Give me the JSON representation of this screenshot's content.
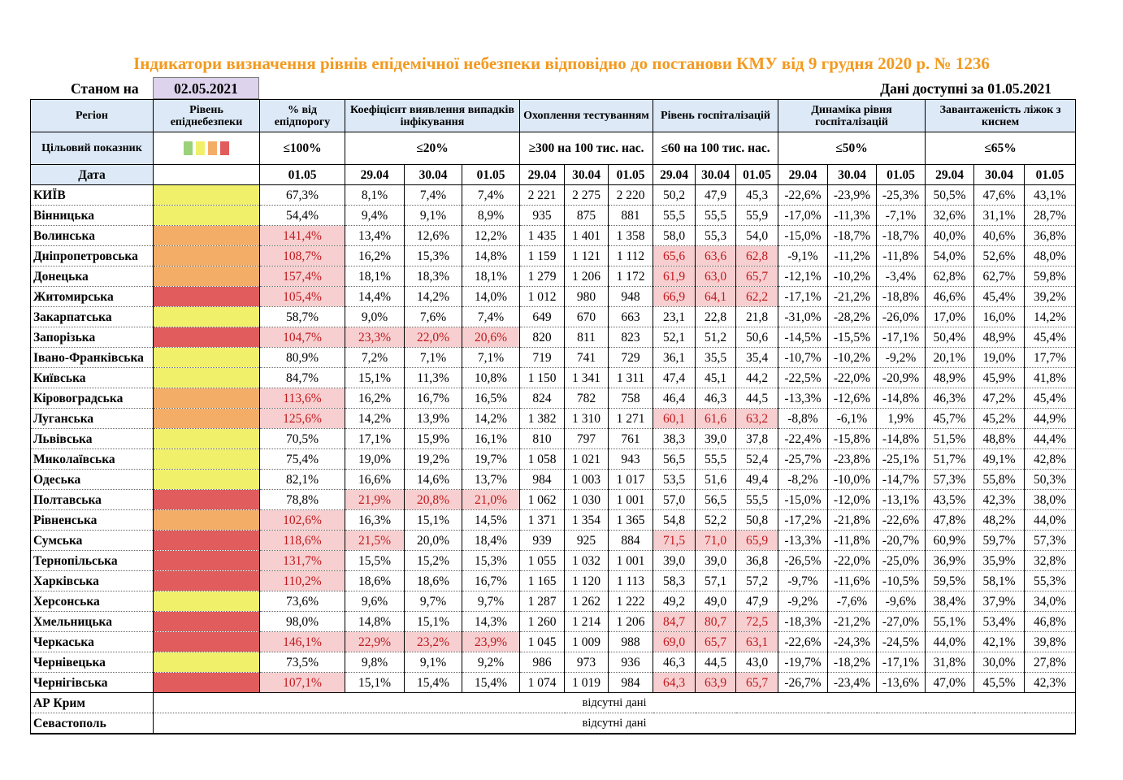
{
  "title": "Індикатори визначення рівнів епідемічної небезпеки відповідно до постанови КМУ від 9 грудня 2020 р. № 1236",
  "as_of_label": "Станом на",
  "as_of_date": "02.05.2021",
  "data_available": "Дані доступні за  01.05.2021",
  "headers": {
    "region": "Регіон",
    "level": "Рівень епіднебезпеки",
    "threshold": "% від епідпорогу",
    "detection": "Коефіцієнт виявлення випадків інфікування",
    "testing": "Охоплення тестуванням",
    "hosp": "Рівень госпіталізацій",
    "dynamics": "Динаміка рівня госпіталізацій",
    "oxygen": "Завантаженість ліжок з киснем"
  },
  "target": {
    "label": "Цільовий показник",
    "swatch_colors": [
      "#9bd17a",
      "#f1f06a",
      "#f4ad67",
      "#e15c5c"
    ],
    "threshold": "≤100%",
    "detection": "≤20%",
    "testing": "≥300 на 100 тис. нас.",
    "hosp": "≤60 на 100 тис. нас.",
    "dynamics": "≤50%",
    "oxygen": "≤65%"
  },
  "date_label": "Дата",
  "dates": {
    "threshold": "01.05",
    "d1": "29.04",
    "d2": "30.04",
    "d3": "01.05"
  },
  "level_colors": {
    "yellow": "#f1f06a",
    "orange": "#f4ad67",
    "red": "#e15c5c"
  },
  "no_data_text": "відсутні дані",
  "no_data_regions": [
    "АР Крим",
    "Севастополь"
  ],
  "rows": [
    {
      "region": "КИЇВ",
      "level": "yellow",
      "threshold": "67,3%",
      "det": [
        "8,1%",
        "7,4%",
        "7,4%"
      ],
      "test": [
        "2 221",
        "2 275",
        "2 220"
      ],
      "hosp": [
        "50,2",
        "47,9",
        "45,3"
      ],
      "dyn": [
        "-22,6%",
        "-23,9%",
        "-25,3%"
      ],
      "oxy": [
        "50,5%",
        "47,6%",
        "43,1%"
      ],
      "hl": []
    },
    {
      "region": "Вінницька",
      "level": "yellow",
      "threshold": "54,4%",
      "det": [
        "9,4%",
        "9,1%",
        "8,9%"
      ],
      "test": [
        "935",
        "875",
        "881"
      ],
      "hosp": [
        "55,5",
        "55,5",
        "55,9"
      ],
      "dyn": [
        "-17,0%",
        "-11,3%",
        "-7,1%"
      ],
      "oxy": [
        "32,6%",
        "31,1%",
        "28,7%"
      ],
      "hl": []
    },
    {
      "region": "Волинська",
      "level": "orange",
      "threshold": "141,4%",
      "det": [
        "13,4%",
        "12,6%",
        "12,2%"
      ],
      "test": [
        "1 435",
        "1 401",
        "1 358"
      ],
      "hosp": [
        "58,0",
        "55,3",
        "54,0"
      ],
      "dyn": [
        "-15,0%",
        "-18,7%",
        "-18,7%"
      ],
      "oxy": [
        "40,0%",
        "40,6%",
        "36,8%"
      ],
      "hl": [
        "threshold"
      ]
    },
    {
      "region": "Дніпропетровська",
      "level": "orange",
      "threshold": "108,7%",
      "det": [
        "16,2%",
        "15,3%",
        "14,8%"
      ],
      "test": [
        "1 159",
        "1 121",
        "1 112"
      ],
      "hosp": [
        "65,6",
        "63,6",
        "62,8"
      ],
      "dyn": [
        "-9,1%",
        "-11,2%",
        "-11,8%"
      ],
      "oxy": [
        "54,0%",
        "52,6%",
        "48,0%"
      ],
      "hl": [
        "threshold",
        "hosp"
      ]
    },
    {
      "region": "Донецька",
      "level": "orange",
      "threshold": "157,4%",
      "det": [
        "18,1%",
        "18,3%",
        "18,1%"
      ],
      "test": [
        "1 279",
        "1 206",
        "1 172"
      ],
      "hosp": [
        "61,9",
        "63,0",
        "65,7"
      ],
      "dyn": [
        "-12,1%",
        "-10,2%",
        "-3,4%"
      ],
      "oxy": [
        "62,8%",
        "62,7%",
        "59,8%"
      ],
      "hl": [
        "threshold",
        "hosp"
      ]
    },
    {
      "region": "Житомирська",
      "level": "red",
      "threshold": "105,4%",
      "det": [
        "14,4%",
        "14,2%",
        "14,0%"
      ],
      "test": [
        "1 012",
        "980",
        "948"
      ],
      "hosp": [
        "66,9",
        "64,1",
        "62,2"
      ],
      "dyn": [
        "-17,1%",
        "-21,2%",
        "-18,8%"
      ],
      "oxy": [
        "46,6%",
        "45,4%",
        "39,2%"
      ],
      "hl": [
        "threshold",
        "hosp"
      ]
    },
    {
      "region": "Закарпатська",
      "level": "yellow",
      "threshold": "58,7%",
      "det": [
        "9,0%",
        "7,6%",
        "7,4%"
      ],
      "test": [
        "649",
        "670",
        "663"
      ],
      "hosp": [
        "23,1",
        "22,8",
        "21,8"
      ],
      "dyn": [
        "-31,0%",
        "-28,2%",
        "-26,0%"
      ],
      "oxy": [
        "17,0%",
        "16,0%",
        "14,2%"
      ],
      "hl": []
    },
    {
      "region": "Запорізька",
      "level": "red",
      "threshold": "104,7%",
      "det": [
        "23,3%",
        "22,0%",
        "20,6%"
      ],
      "test": [
        "820",
        "811",
        "823"
      ],
      "hosp": [
        "52,1",
        "51,2",
        "50,6"
      ],
      "dyn": [
        "-14,5%",
        "-15,5%",
        "-17,1%"
      ],
      "oxy": [
        "50,4%",
        "48,9%",
        "45,4%"
      ],
      "hl": [
        "threshold",
        "det"
      ]
    },
    {
      "region": "Івано-Франківська",
      "level": "yellow",
      "threshold": "80,9%",
      "det": [
        "7,2%",
        "7,1%",
        "7,1%"
      ],
      "test": [
        "719",
        "741",
        "729"
      ],
      "hosp": [
        "36,1",
        "35,5",
        "35,4"
      ],
      "dyn": [
        "-10,7%",
        "-10,2%",
        "-9,2%"
      ],
      "oxy": [
        "20,1%",
        "19,0%",
        "17,7%"
      ],
      "hl": []
    },
    {
      "region": "Київська",
      "level": "yellow",
      "threshold": "84,7%",
      "det": [
        "15,1%",
        "11,3%",
        "10,8%"
      ],
      "test": [
        "1 150",
        "1 341",
        "1 311"
      ],
      "hosp": [
        "47,4",
        "45,1",
        "44,2"
      ],
      "dyn": [
        "-22,5%",
        "-22,0%",
        "-20,9%"
      ],
      "oxy": [
        "48,9%",
        "45,9%",
        "41,8%"
      ],
      "hl": []
    },
    {
      "region": "Кіровоградська",
      "level": "orange",
      "threshold": "113,6%",
      "det": [
        "16,2%",
        "16,7%",
        "16,5%"
      ],
      "test": [
        "824",
        "782",
        "758"
      ],
      "hosp": [
        "46,4",
        "46,3",
        "44,5"
      ],
      "dyn": [
        "-13,3%",
        "-12,6%",
        "-14,8%"
      ],
      "oxy": [
        "46,3%",
        "47,2%",
        "45,4%"
      ],
      "hl": [
        "threshold"
      ]
    },
    {
      "region": "Луганська",
      "level": "orange",
      "threshold": "125,6%",
      "det": [
        "14,2%",
        "13,9%",
        "14,2%"
      ],
      "test": [
        "1 382",
        "1 310",
        "1 271"
      ],
      "hosp": [
        "60,1",
        "61,6",
        "63,2"
      ],
      "dyn": [
        "-8,8%",
        "-6,1%",
        "1,9%"
      ],
      "oxy": [
        "45,7%",
        "45,2%",
        "44,9%"
      ],
      "hl": [
        "threshold",
        "hosp"
      ]
    },
    {
      "region": "Львівська",
      "level": "yellow",
      "threshold": "70,5%",
      "det": [
        "17,1%",
        "15,9%",
        "16,1%"
      ],
      "test": [
        "810",
        "797",
        "761"
      ],
      "hosp": [
        "38,3",
        "39,0",
        "37,8"
      ],
      "dyn": [
        "-22,4%",
        "-15,8%",
        "-14,8%"
      ],
      "oxy": [
        "51,5%",
        "48,8%",
        "44,4%"
      ],
      "hl": []
    },
    {
      "region": "Миколаївська",
      "level": "yellow",
      "threshold": "75,4%",
      "det": [
        "19,0%",
        "19,2%",
        "19,7%"
      ],
      "test": [
        "1 058",
        "1 021",
        "943"
      ],
      "hosp": [
        "56,5",
        "55,5",
        "52,4"
      ],
      "dyn": [
        "-25,7%",
        "-23,8%",
        "-25,1%"
      ],
      "oxy": [
        "51,7%",
        "49,1%",
        "42,8%"
      ],
      "hl": []
    },
    {
      "region": "Одеська",
      "level": "yellow",
      "threshold": "82,1%",
      "det": [
        "16,6%",
        "14,6%",
        "13,7%"
      ],
      "test": [
        "984",
        "1 003",
        "1 017"
      ],
      "hosp": [
        "53,5",
        "51,6",
        "49,4"
      ],
      "dyn": [
        "-8,2%",
        "-10,0%",
        "-14,7%"
      ],
      "oxy": [
        "57,3%",
        "55,8%",
        "50,3%"
      ],
      "hl": []
    },
    {
      "region": "Полтавська",
      "level": "red",
      "threshold": "78,8%",
      "det": [
        "21,9%",
        "20,8%",
        "21,0%"
      ],
      "test": [
        "1 062",
        "1 030",
        "1 001"
      ],
      "hosp": [
        "57,0",
        "56,5",
        "55,5"
      ],
      "dyn": [
        "-15,0%",
        "-12,0%",
        "-13,1%"
      ],
      "oxy": [
        "43,5%",
        "42,3%",
        "38,0%"
      ],
      "hl": [
        "det"
      ]
    },
    {
      "region": "Рівненська",
      "level": "orange",
      "threshold": "102,6%",
      "det": [
        "16,3%",
        "15,1%",
        "14,5%"
      ],
      "test": [
        "1 371",
        "1 354",
        "1 365"
      ],
      "hosp": [
        "54,8",
        "52,2",
        "50,8"
      ],
      "dyn": [
        "-17,2%",
        "-21,8%",
        "-22,6%"
      ],
      "oxy": [
        "47,8%",
        "48,2%",
        "44,0%"
      ],
      "hl": [
        "threshold"
      ]
    },
    {
      "region": "Сумська",
      "level": "red",
      "threshold": "118,6%",
      "det": [
        "21,5%",
        "20,0%",
        "18,4%"
      ],
      "test": [
        "939",
        "925",
        "884"
      ],
      "hosp": [
        "71,5",
        "71,0",
        "65,9"
      ],
      "dyn": [
        "-13,3%",
        "-11,8%",
        "-20,7%"
      ],
      "oxy": [
        "60,9%",
        "59,7%",
        "57,3%"
      ],
      "hl": [
        "threshold",
        "det0",
        "hosp"
      ]
    },
    {
      "region": "Тернопільська",
      "level": "red",
      "threshold": "131,7%",
      "det": [
        "15,5%",
        "15,2%",
        "15,3%"
      ],
      "test": [
        "1 055",
        "1 032",
        "1 001"
      ],
      "hosp": [
        "39,0",
        "39,0",
        "36,8"
      ],
      "dyn": [
        "-26,5%",
        "-22,0%",
        "-25,0%"
      ],
      "oxy": [
        "36,9%",
        "35,9%",
        "32,8%"
      ],
      "hl": [
        "threshold"
      ]
    },
    {
      "region": "Харківська",
      "level": "red",
      "threshold": "110,2%",
      "det": [
        "18,6%",
        "18,6%",
        "16,7%"
      ],
      "test": [
        "1 165",
        "1 120",
        "1 113"
      ],
      "hosp": [
        "58,3",
        "57,1",
        "57,2"
      ],
      "dyn": [
        "-9,7%",
        "-11,6%",
        "-10,5%"
      ],
      "oxy": [
        "59,5%",
        "58,1%",
        "55,3%"
      ],
      "hl": [
        "threshold"
      ]
    },
    {
      "region": "Херсонська",
      "level": "yellow",
      "threshold": "73,6%",
      "det": [
        "9,6%",
        "9,7%",
        "9,7%"
      ],
      "test": [
        "1 287",
        "1 262",
        "1 222"
      ],
      "hosp": [
        "49,2",
        "49,0",
        "47,9"
      ],
      "dyn": [
        "-9,2%",
        "-7,6%",
        "-9,6%"
      ],
      "oxy": [
        "38,4%",
        "37,9%",
        "34,0%"
      ],
      "hl": []
    },
    {
      "region": "Хмельницька",
      "level": "red",
      "threshold": "98,0%",
      "det": [
        "14,8%",
        "15,1%",
        "14,3%"
      ],
      "test": [
        "1 260",
        "1 214",
        "1 206"
      ],
      "hosp": [
        "84,7",
        "80,7",
        "72,5"
      ],
      "dyn": [
        "-18,3%",
        "-21,2%",
        "-27,0%"
      ],
      "oxy": [
        "55,1%",
        "53,4%",
        "46,8%"
      ],
      "hl": [
        "hosp"
      ]
    },
    {
      "region": "Черкаська",
      "level": "red",
      "threshold": "146,1%",
      "det": [
        "22,9%",
        "23,2%",
        "23,9%"
      ],
      "test": [
        "1 045",
        "1 009",
        "988"
      ],
      "hosp": [
        "69,0",
        "65,7",
        "63,1"
      ],
      "dyn": [
        "-22,6%",
        "-24,3%",
        "-24,5%"
      ],
      "oxy": [
        "44,0%",
        "42,1%",
        "39,8%"
      ],
      "hl": [
        "threshold",
        "det",
        "hosp"
      ]
    },
    {
      "region": "Чернівецька",
      "level": "yellow",
      "threshold": "73,5%",
      "det": [
        "9,8%",
        "9,1%",
        "9,2%"
      ],
      "test": [
        "986",
        "973",
        "936"
      ],
      "hosp": [
        "46,3",
        "44,5",
        "43,0"
      ],
      "dyn": [
        "-19,7%",
        "-18,2%",
        "-17,1%"
      ],
      "oxy": [
        "31,8%",
        "30,0%",
        "27,8%"
      ],
      "hl": []
    },
    {
      "region": "Чернігівська",
      "level": "red",
      "threshold": "107,1%",
      "det": [
        "15,1%",
        "15,4%",
        "15,4%"
      ],
      "test": [
        "1 074",
        "1 019",
        "984"
      ],
      "hosp": [
        "64,3",
        "63,9",
        "65,7"
      ],
      "dyn": [
        "-26,7%",
        "-23,4%",
        "-13,6%"
      ],
      "oxy": [
        "47,0%",
        "45,5%",
        "42,3%"
      ],
      "hl": [
        "threshold",
        "hosp"
      ]
    }
  ]
}
